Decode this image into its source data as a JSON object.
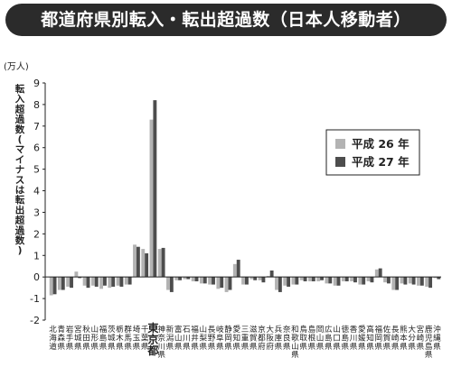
{
  "header": {
    "title": "都道府県別転入・転出超過数（日本人移動者）"
  },
  "chart_data": {
    "type": "bar",
    "unit_label": "(万人)",
    "ylabel": "転入超過数(マイナスは転出超過数)",
    "ylim": [
      -2,
      9
    ],
    "yticks": [
      "-2",
      "-1",
      "0",
      "1",
      "2",
      "3",
      "4",
      "5",
      "6",
      "7",
      "8",
      "9"
    ],
    "grid": false,
    "legend_position": "top-right",
    "categories": [
      "北海道",
      "青森県",
      "岩手県",
      "宮城県",
      "秋田県",
      "山形県",
      "福島県",
      "茨城県",
      "栃木県",
      "群馬県",
      "埼玉県",
      "千葉県",
      "東京都",
      "神奈川県",
      "新潟県",
      "富山県",
      "石川県",
      "福井県",
      "山梨県",
      "長野県",
      "岐阜県",
      "静岡県",
      "愛知県",
      "三重県",
      "滋賀県",
      "京都府",
      "大阪府",
      "兵庫県",
      "奈良県",
      "和歌山県",
      "鳥取県",
      "島根県",
      "岡山県",
      "広島県",
      "山口県",
      "徳島県",
      "香川県",
      "愛媛県",
      "高知県",
      "福岡県",
      "佐賀県",
      "長崎県",
      "熊本県",
      "大分県",
      "宮崎県",
      "鹿児島県",
      "沖縄県"
    ],
    "series": [
      {
        "name": "平成 26 年",
        "color": "#b3b3b3",
        "values": [
          -0.85,
          -0.6,
          -0.45,
          0.25,
          -0.4,
          -0.4,
          -0.55,
          -0.5,
          -0.4,
          -0.35,
          1.5,
          1.3,
          7.3,
          1.3,
          -0.6,
          -0.15,
          -0.1,
          -0.2,
          -0.3,
          -0.35,
          -0.55,
          -0.7,
          0.6,
          -0.35,
          -0.1,
          -0.15,
          0.05,
          -0.6,
          -0.4,
          -0.35,
          -0.15,
          -0.2,
          -0.2,
          -0.3,
          -0.4,
          -0.2,
          -0.2,
          -0.35,
          -0.2,
          0.35,
          -0.25,
          -0.6,
          -0.3,
          -0.3,
          -0.4,
          -0.45,
          -0.05
        ]
      },
      {
        "name": "平成 27 年",
        "color": "#4d4d4d",
        "values": [
          -0.8,
          -0.6,
          -0.5,
          -0.05,
          -0.5,
          -0.45,
          -0.4,
          -0.45,
          -0.45,
          -0.35,
          1.4,
          1.1,
          8.2,
          1.35,
          -0.7,
          -0.15,
          -0.1,
          -0.2,
          -0.3,
          -0.35,
          -0.5,
          -0.6,
          0.8,
          -0.35,
          -0.15,
          -0.25,
          0.3,
          -0.7,
          -0.45,
          -0.35,
          -0.2,
          -0.2,
          -0.15,
          -0.3,
          -0.4,
          -0.2,
          -0.25,
          -0.35,
          -0.25,
          0.4,
          -0.3,
          -0.6,
          -0.35,
          -0.35,
          -0.4,
          -0.5,
          -0.1
        ]
      }
    ]
  }
}
